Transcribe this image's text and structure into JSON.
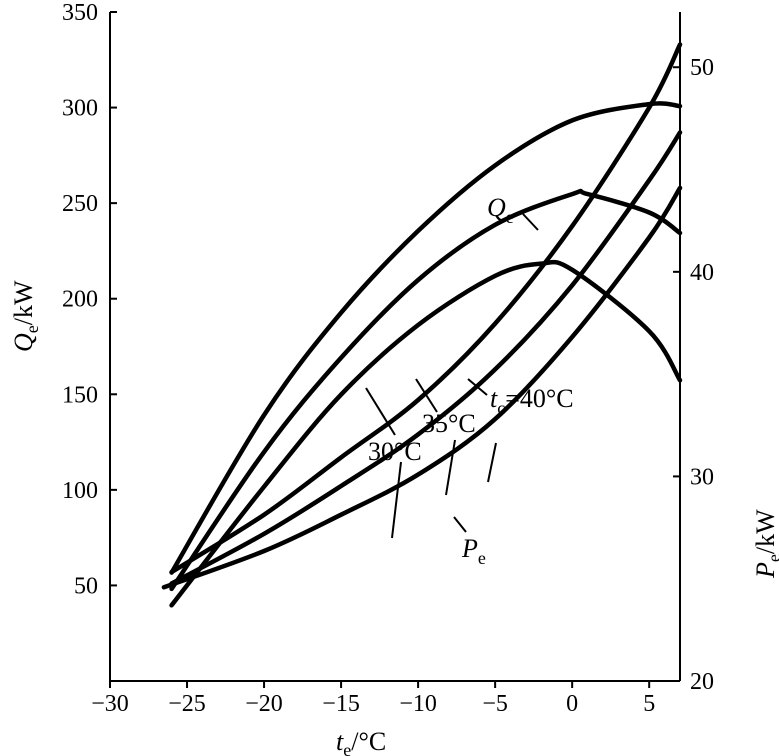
{
  "chart_data": {
    "type": "line",
    "title": "",
    "xlabel": {
      "symbol": "t",
      "sub": "e",
      "unit": "/°C"
    },
    "ylabel_left": {
      "symbol": "Q",
      "sub": "e",
      "unit": "/kW"
    },
    "ylabel_right": {
      "symbol": "P",
      "sub": "e",
      "unit": "/kW"
    },
    "xlim": [
      -30,
      7
    ],
    "ylim_left": [
      0,
      350
    ],
    "ylim_right": [
      20,
      52.7
    ],
    "x_ticks": [
      "−30",
      "−25",
      "−20",
      "−15",
      "−10",
      "−5",
      "0",
      "5"
    ],
    "x_tick_values": [
      -30,
      -25,
      -20,
      -15,
      -10,
      -5,
      0,
      5
    ],
    "y_left_ticks": [
      "50",
      "100",
      "150",
      "200",
      "250",
      "300",
      "350"
    ],
    "y_left_tick_values": [
      50,
      100,
      150,
      200,
      250,
      300,
      350
    ],
    "y_right_ticks": [
      "20",
      "30",
      "40",
      "50"
    ],
    "y_right_tick_values": [
      20,
      30,
      40,
      50
    ],
    "grid": false,
    "series": [
      {
        "group": "Q",
        "tc": "30°C",
        "x": [
          -26,
          -20,
          -15,
          -10,
          -5,
          0,
          5,
          7
        ],
        "y": [
          57,
          87,
          117,
          147,
          187,
          238,
          300,
          333
        ]
      },
      {
        "group": "Q",
        "tc": "35°C",
        "x": [
          -26,
          -20,
          -15,
          -10,
          -5,
          0,
          5,
          7
        ],
        "y": [
          51,
          77,
          102,
          129,
          163,
          207,
          262,
          287
        ]
      },
      {
        "group": "Q",
        "tc": "40°C",
        "x": [
          -26.5,
          -20,
          -15,
          -10,
          -5,
          0,
          5,
          7
        ],
        "y": [
          49,
          68,
          87,
          108,
          137,
          180,
          232,
          258
        ]
      },
      {
        "group": "P",
        "tc": "30°C",
        "x": [
          -26,
          -20,
          -15,
          -10,
          -5,
          -2,
          0,
          5,
          7
        ],
        "y": [
          23.7,
          29.5,
          34.0,
          37.4,
          39.8,
          40.4,
          40.1,
          37.1,
          34.7
        ]
      },
      {
        "group": "P",
        "tc": "35°C",
        "x": [
          -26,
          -20,
          -15,
          -10,
          -5,
          0,
          1,
          5,
          7
        ],
        "y": [
          24.5,
          31.2,
          35.8,
          39.6,
          42.3,
          43.8,
          43.8,
          42.9,
          41.9
        ]
      },
      {
        "group": "P",
        "tc": "40°C",
        "x": [
          -26,
          -20,
          -15,
          -10,
          -5,
          0,
          5,
          7
        ],
        "y": [
          25.3,
          33.0,
          38.0,
          42.0,
          45.2,
          47.4,
          48.2,
          48.1
        ]
      }
    ],
    "annotations": {
      "q_label": {
        "symbol": "Q",
        "sub": "e"
      },
      "p_label": {
        "symbol": "P",
        "sub": "e"
      },
      "tc40_symbol": "t",
      "tc40_sub": "c",
      "tc40_text": "=40°C",
      "tc35_text": "35°C",
      "tc30_text": "30°C"
    }
  }
}
